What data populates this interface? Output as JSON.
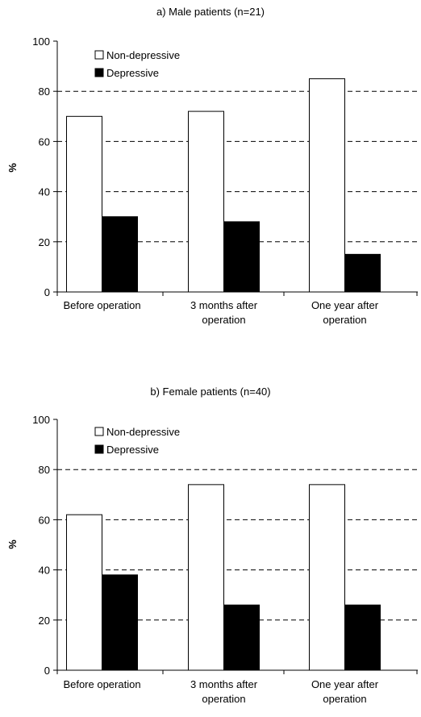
{
  "chart_data": [
    {
      "type": "bar",
      "title": "a) Male patients (n=21)",
      "ylabel": "%",
      "xlabel": "",
      "ylim": [
        0,
        100
      ],
      "yticks": [
        0,
        20,
        40,
        60,
        80,
        100
      ],
      "grid": "dashed horizontal",
      "legend_position": "top-left",
      "categories": [
        [
          "Before operation"
        ],
        [
          "3 months after",
          "operation"
        ],
        [
          "One year after",
          "operation"
        ]
      ],
      "series": [
        {
          "name": "Non-depressive",
          "color": "#ffffff",
          "values": [
            70,
            72,
            85
          ]
        },
        {
          "name": "Depressive",
          "color": "#000000",
          "values": [
            30,
            28,
            15
          ]
        }
      ]
    },
    {
      "type": "bar",
      "title": "b) Female patients (n=40)",
      "ylabel": "%",
      "xlabel": "",
      "ylim": [
        0,
        100
      ],
      "yticks": [
        0,
        20,
        40,
        60,
        80,
        100
      ],
      "grid": "dashed horizontal",
      "legend_position": "top-left",
      "categories": [
        [
          "Before operation"
        ],
        [
          "3 months after",
          "operation"
        ],
        [
          "One year after",
          "operation"
        ]
      ],
      "series": [
        {
          "name": "Non-depressive",
          "color": "#ffffff",
          "values": [
            62,
            74,
            74
          ]
        },
        {
          "name": "Depressive",
          "color": "#000000",
          "values": [
            38,
            26,
            26
          ]
        }
      ]
    }
  ]
}
